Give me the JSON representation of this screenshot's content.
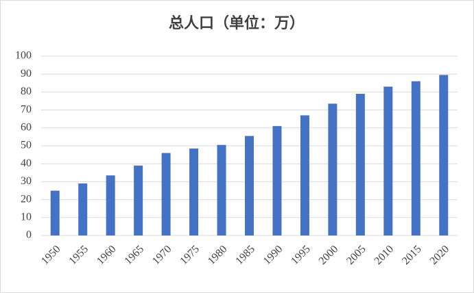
{
  "chart_data": {
    "type": "bar",
    "title": "总人口（单位：万）",
    "categories": [
      "1950",
      "1955",
      "1960",
      "1965",
      "1970",
      "1975",
      "1980",
      "1985",
      "1990",
      "1995",
      "2000",
      "2005",
      "2010",
      "2015",
      "2020"
    ],
    "values": [
      25,
      29,
      33.5,
      39,
      46,
      48.5,
      50.5,
      55.5,
      61,
      67,
      73.5,
      79,
      83,
      86,
      89.5
    ],
    "color": "#4472c4",
    "ylim": [
      0,
      100
    ],
    "yticks": [
      0,
      10,
      20,
      30,
      40,
      50,
      60,
      70,
      80,
      90,
      100
    ],
    "grid": true
  }
}
